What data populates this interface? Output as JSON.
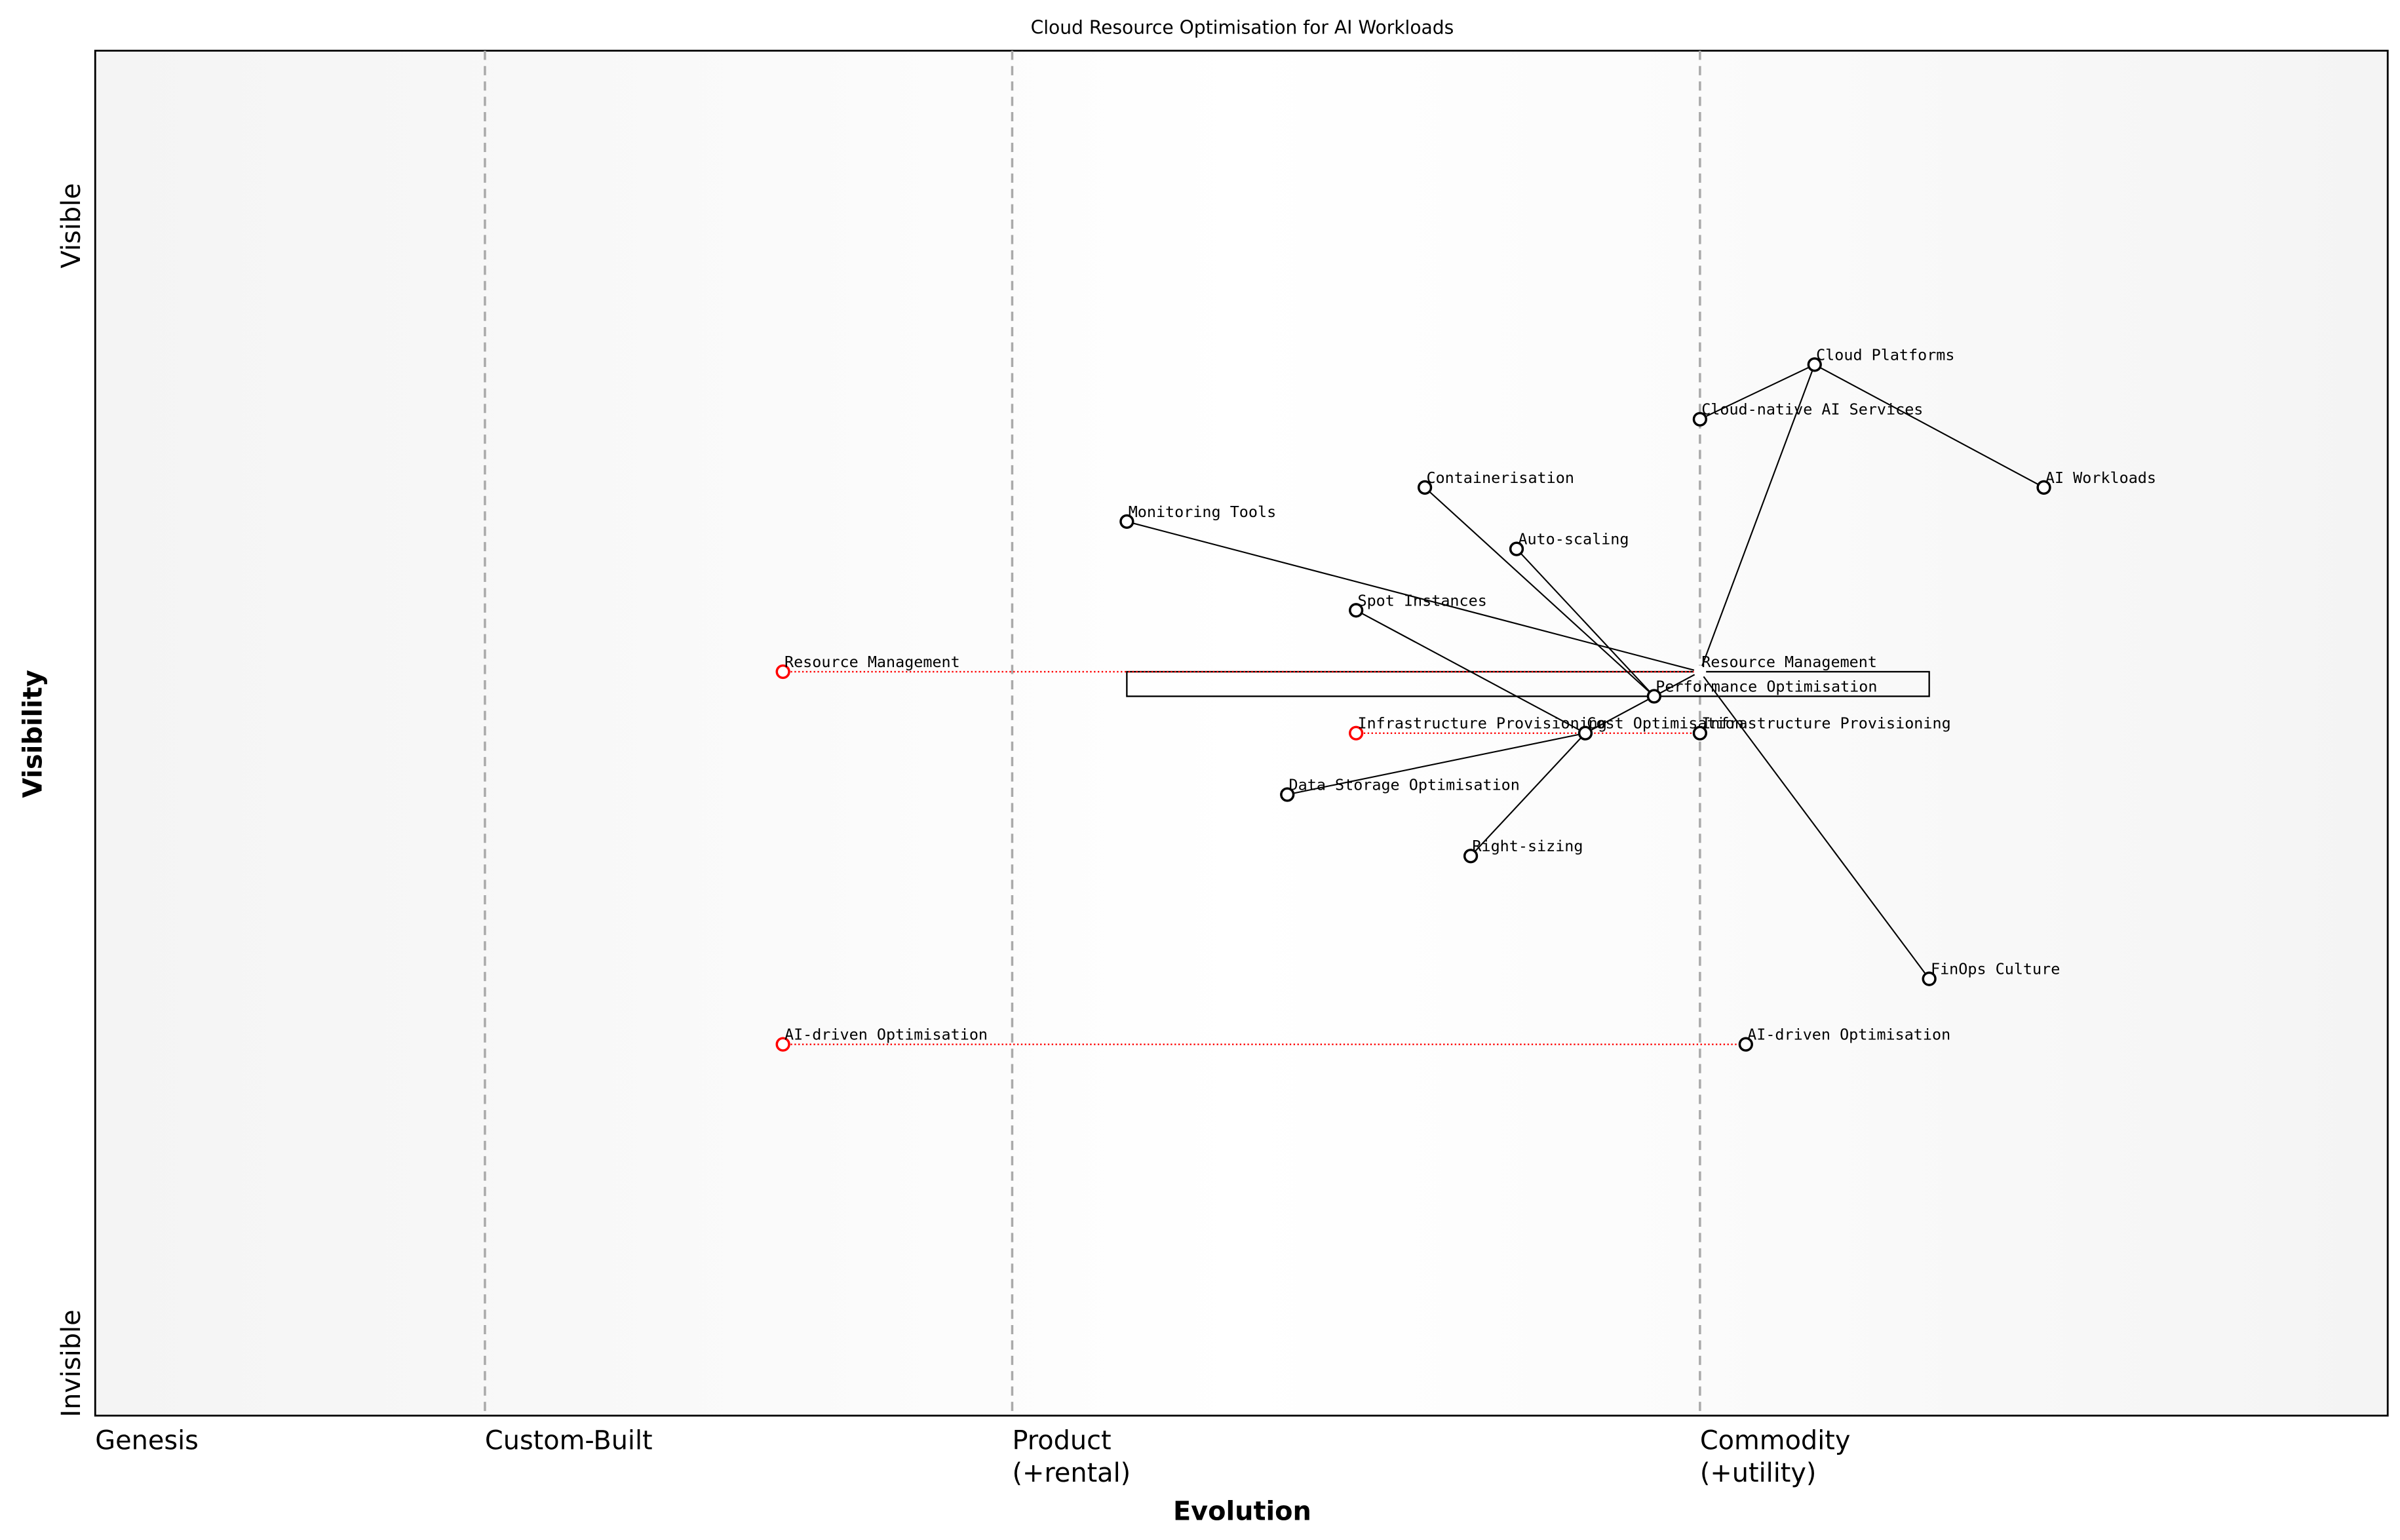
{
  "title": "Cloud Resource Optimisation for AI Workloads",
  "x_axis_label": "Evolution",
  "y_axis_label": "Visibility",
  "y_top_label": "Visible",
  "y_bottom_label": "Invisible",
  "stages": [
    {
      "lines": [
        "Genesis"
      ],
      "at": 0.0
    },
    {
      "lines": [
        "Custom-Built"
      ],
      "at": 0.17
    },
    {
      "lines": [
        "Product",
        "(+rental)"
      ],
      "at": 0.4
    },
    {
      "lines": [
        "Commodity",
        "(+utility)"
      ],
      "at": 0.7
    }
  ],
  "colors": {
    "component": "#000000",
    "evolve": "#ff0000",
    "divider": "#aaaaaa",
    "edge_band": "#f5f5f5"
  },
  "components": [
    {
      "name": "Cloud Platforms",
      "evolution": 0.75,
      "visibility": 0.77
    },
    {
      "name": "Cloud-native AI Services",
      "evolution": 0.7,
      "visibility": 0.73
    },
    {
      "name": "AI Workloads",
      "evolution": 0.85,
      "visibility": 0.68
    },
    {
      "name": "Containerisation",
      "evolution": 0.58,
      "visibility": 0.68
    },
    {
      "name": "Monitoring Tools",
      "evolution": 0.45,
      "visibility": 0.655
    },
    {
      "name": "Auto-scaling",
      "evolution": 0.62,
      "visibility": 0.635
    },
    {
      "name": "Spot Instances",
      "evolution": 0.55,
      "visibility": 0.59
    },
    {
      "name": "Resource Management",
      "evolution": 0.7,
      "visibility": 0.545,
      "hidden_marker": true
    },
    {
      "name": "Performance Optimisation",
      "evolution": 0.68,
      "visibility": 0.527
    },
    {
      "name": "Cost Optimisation",
      "evolution": 0.65,
      "visibility": 0.5
    },
    {
      "name": "Infrastructure Provisioning",
      "evolution": 0.7,
      "visibility": 0.5
    },
    {
      "name": "Data Storage Optimisation",
      "evolution": 0.52,
      "visibility": 0.455
    },
    {
      "name": "Right-sizing",
      "evolution": 0.6,
      "visibility": 0.41
    },
    {
      "name": "FinOps Culture",
      "evolution": 0.8,
      "visibility": 0.32
    },
    {
      "name": "AI-driven Optimisation",
      "evolution": 0.72,
      "visibility": 0.272
    }
  ],
  "evolving": [
    {
      "name": "Resource Management",
      "from": 0.3,
      "to": 0.7,
      "visibility": 0.545
    },
    {
      "name": "Infrastructure Provisioning",
      "from": 0.55,
      "to": 0.7,
      "visibility": 0.5
    },
    {
      "name": "AI-driven Optimisation",
      "from": 0.3,
      "to": 0.72,
      "visibility": 0.272
    }
  ],
  "links": [
    [
      "Cloud Platforms",
      "Cloud-native AI Services"
    ],
    [
      "Cloud Platforms",
      "AI Workloads"
    ],
    [
      "Cloud Platforms",
      "Resource Management"
    ],
    [
      "Monitoring Tools",
      "Resource Management"
    ],
    [
      "Resource Management",
      "Performance Optimisation"
    ],
    [
      "Resource Management",
      "FinOps Culture"
    ],
    [
      "Containerisation",
      "Performance Optimisation"
    ],
    [
      "Auto-scaling",
      "Performance Optimisation"
    ],
    [
      "Cost Optimisation",
      "Performance Optimisation"
    ],
    [
      "Spot Instances",
      "Cost Optimisation"
    ],
    [
      "Data Storage Optimisation",
      "Cost Optimisation"
    ],
    [
      "Right-sizing",
      "Cost Optimisation"
    ]
  ],
  "pipeline": {
    "component": "Resource Management",
    "from": 0.45,
    "to": 0.8,
    "visibility_top": 0.545,
    "visibility_bottom": 0.527
  }
}
